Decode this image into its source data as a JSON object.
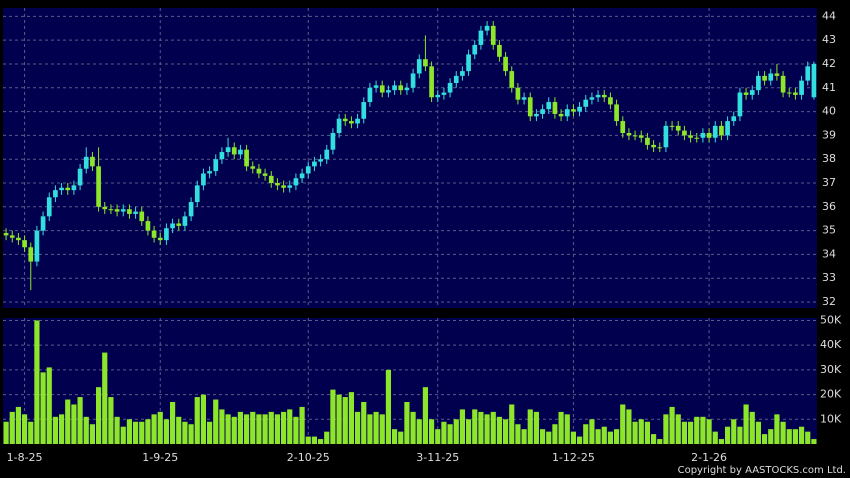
{
  "chart_data": {
    "type": "candlestick",
    "copyright": "Copyright by AASTOCKS.com Ltd.",
    "categories": [
      null,
      null,
      null,
      "1-8-25",
      null,
      null,
      null,
      null,
      null,
      null,
      null,
      null,
      null,
      null,
      null,
      null,
      null,
      null,
      null,
      null,
      null,
      null,
      null,
      null,
      null,
      "1-9-25",
      null,
      null,
      null,
      null,
      null,
      null,
      null,
      null,
      null,
      null,
      null,
      null,
      null,
      null,
      null,
      null,
      null,
      null,
      null,
      null,
      null,
      null,
      null,
      "2-10-25",
      null,
      null,
      null,
      null,
      null,
      null,
      null,
      null,
      null,
      null,
      null,
      null,
      null,
      null,
      null,
      null,
      null,
      null,
      null,
      null,
      "3-11-25",
      null,
      null,
      null,
      null,
      null,
      null,
      null,
      null,
      null,
      null,
      null,
      null,
      null,
      null,
      null,
      null,
      null,
      null,
      null,
      null,
      null,
      "1-12-25",
      null,
      null,
      null,
      null,
      null,
      null,
      null,
      null,
      null,
      null,
      null,
      null,
      null,
      null,
      null,
      null,
      null,
      null,
      null,
      null,
      null,
      "2-1-26",
      null,
      null,
      null,
      null,
      null,
      null,
      null,
      null,
      null,
      null,
      null,
      null,
      null,
      null,
      null,
      null,
      null
    ],
    "open": [
      34.9,
      34.8,
      34.7,
      34.6,
      34.3,
      33.7,
      35.0,
      35.6,
      36.4,
      36.7,
      36.8,
      36.7,
      36.9,
      37.6,
      38.1,
      37.7,
      36.0,
      35.9,
      35.9,
      35.8,
      35.9,
      35.7,
      35.8,
      35.4,
      35.0,
      34.7,
      34.6,
      35.1,
      35.3,
      35.2,
      35.6,
      36.2,
      36.9,
      37.4,
      37.5,
      38.0,
      38.3,
      38.5,
      38.2,
      38.4,
      37.7,
      37.6,
      37.4,
      37.3,
      37.0,
      36.9,
      36.8,
      36.9,
      37.2,
      37.4,
      37.7,
      37.9,
      38.0,
      38.4,
      39.1,
      39.7,
      39.6,
      39.5,
      39.7,
      40.4,
      41.0,
      41.1,
      40.8,
      40.9,
      41.1,
      40.9,
      41.0,
      41.6,
      42.2,
      41.9,
      40.6,
      40.7,
      40.8,
      41.2,
      41.5,
      41.7,
      42.4,
      42.8,
      43.4,
      43.6,
      42.8,
      42.3,
      41.7,
      41.0,
      40.5,
      40.6,
      39.8,
      39.9,
      40.1,
      40.4,
      39.9,
      39.8,
      40.1,
      40.0,
      40.2,
      40.5,
      40.6,
      40.7,
      40.6,
      40.3,
      39.6,
      39.1,
      39.0,
      39.0,
      38.9,
      38.6,
      38.5,
      38.5,
      39.4,
      39.4,
      39.2,
      39.0,
      38.9,
      38.9,
      39.1,
      38.9,
      39.4,
      39.0,
      39.6,
      39.8,
      40.8,
      40.7,
      40.9,
      41.5,
      41.3,
      41.6,
      41.5,
      40.8,
      40.8,
      40.7,
      41.3,
      40.6
    ],
    "high": [
      35.1,
      35.0,
      34.9,
      34.8,
      34.5,
      35.2,
      35.8,
      36.6,
      36.9,
      37.0,
      37.0,
      37.1,
      37.8,
      38.5,
      38.3,
      38.5,
      36.2,
      36.1,
      36.1,
      36.1,
      36.1,
      36.0,
      36.0,
      35.6,
      35.2,
      34.9,
      35.3,
      35.5,
      35.5,
      35.8,
      36.4,
      37.1,
      37.6,
      37.7,
      38.2,
      38.5,
      38.9,
      38.7,
      38.6,
      38.6,
      37.9,
      37.8,
      37.6,
      37.5,
      37.2,
      37.1,
      37.1,
      37.4,
      37.6,
      37.9,
      38.1,
      38.2,
      38.6,
      39.3,
      39.9,
      39.9,
      39.8,
      39.9,
      40.6,
      41.2,
      41.3,
      41.3,
      41.1,
      41.3,
      41.3,
      41.2,
      41.8,
      42.4,
      43.2,
      42.1,
      40.9,
      41.0,
      41.4,
      41.7,
      41.9,
      42.6,
      43.0,
      43.6,
      43.8,
      43.8,
      43.0,
      42.5,
      41.9,
      41.2,
      40.8,
      40.8,
      40.1,
      40.3,
      40.6,
      40.6,
      40.1,
      40.3,
      40.3,
      40.4,
      40.7,
      40.8,
      40.9,
      40.9,
      40.8,
      40.5,
      39.8,
      39.3,
      39.2,
      39.2,
      39.1,
      38.8,
      38.7,
      39.6,
      39.6,
      39.6,
      39.4,
      39.2,
      39.1,
      39.3,
      39.3,
      39.6,
      39.6,
      39.8,
      40.0,
      41.0,
      41.0,
      41.1,
      41.7,
      41.7,
      41.8,
      42.0,
      41.7,
      41.0,
      41.0,
      41.5,
      42.1,
      42.1
    ],
    "low": [
      34.6,
      34.5,
      34.4,
      34.1,
      32.5,
      33.5,
      34.8,
      35.4,
      36.2,
      36.5,
      36.5,
      36.5,
      36.7,
      37.4,
      37.5,
      35.8,
      35.7,
      35.7,
      35.6,
      35.6,
      35.5,
      35.5,
      35.2,
      34.8,
      34.5,
      34.4,
      34.4,
      34.9,
      35.0,
      35.0,
      35.4,
      36.0,
      36.7,
      37.2,
      37.3,
      37.8,
      38.1,
      38.0,
      38.0,
      37.5,
      37.4,
      37.2,
      37.1,
      36.8,
      36.7,
      36.6,
      36.6,
      36.7,
      37.0,
      37.2,
      37.5,
      37.7,
      37.8,
      38.2,
      38.9,
      39.4,
      39.3,
      39.3,
      39.5,
      40.2,
      40.8,
      40.6,
      40.6,
      40.7,
      40.7,
      40.7,
      40.8,
      41.4,
      41.7,
      40.4,
      40.4,
      40.5,
      40.6,
      41.0,
      41.3,
      41.5,
      42.2,
      42.6,
      43.2,
      42.6,
      42.1,
      41.5,
      40.8,
      40.3,
      40.3,
      39.6,
      39.6,
      39.7,
      39.9,
      39.7,
      39.6,
      39.6,
      39.8,
      39.8,
      40.0,
      40.3,
      40.4,
      40.4,
      40.1,
      39.4,
      38.9,
      38.8,
      38.8,
      38.7,
      38.4,
      38.3,
      38.3,
      38.3,
      39.2,
      39.0,
      38.8,
      38.7,
      38.7,
      38.7,
      38.7,
      38.7,
      38.8,
      38.8,
      39.4,
      39.6,
      40.5,
      40.5,
      40.7,
      41.1,
      41.1,
      41.3,
      40.6,
      40.6,
      40.5,
      40.5,
      41.1,
      40.5
    ],
    "close": [
      34.8,
      34.7,
      34.6,
      34.3,
      33.7,
      35.0,
      35.6,
      36.4,
      36.7,
      36.8,
      36.7,
      36.9,
      37.6,
      38.1,
      37.7,
      36.0,
      35.9,
      35.9,
      35.8,
      35.9,
      35.7,
      35.8,
      35.4,
      35.0,
      34.7,
      34.6,
      35.1,
      35.3,
      35.2,
      35.6,
      36.2,
      36.9,
      37.4,
      37.5,
      38.0,
      38.3,
      38.5,
      38.2,
      38.4,
      37.7,
      37.6,
      37.4,
      37.3,
      37.0,
      36.9,
      36.8,
      36.9,
      37.2,
      37.4,
      37.7,
      37.9,
      38.0,
      38.4,
      39.1,
      39.7,
      39.6,
      39.5,
      39.7,
      40.4,
      41.0,
      41.1,
      40.8,
      40.9,
      41.1,
      40.9,
      41.0,
      41.6,
      42.2,
      41.9,
      40.6,
      40.7,
      40.8,
      41.2,
      41.5,
      41.7,
      42.4,
      42.8,
      43.4,
      43.6,
      42.8,
      42.3,
      41.7,
      41.0,
      40.5,
      40.6,
      39.8,
      39.9,
      40.1,
      40.4,
      39.9,
      39.8,
      40.1,
      40.0,
      40.2,
      40.5,
      40.6,
      40.7,
      40.6,
      40.3,
      39.6,
      39.1,
      39.0,
      39.0,
      38.9,
      38.6,
      38.5,
      38.5,
      39.4,
      39.4,
      39.2,
      39.0,
      38.9,
      38.9,
      39.1,
      38.9,
      39.4,
      39.0,
      39.6,
      39.8,
      40.8,
      40.7,
      40.9,
      41.5,
      41.3,
      41.6,
      41.5,
      40.8,
      40.8,
      40.7,
      41.3,
      41.9,
      42.0
    ],
    "volume": [
      9000,
      13000,
      15000,
      12000,
      9000,
      50000,
      29000,
      31000,
      11000,
      12000,
      18000,
      16000,
      19000,
      11000,
      8000,
      23000,
      37000,
      19000,
      11000,
      7000,
      10000,
      9000,
      9000,
      10000,
      12000,
      13000,
      10000,
      17000,
      11000,
      9000,
      8000,
      19000,
      20000,
      9000,
      18000,
      14000,
      12000,
      11000,
      13000,
      12000,
      13000,
      12000,
      12000,
      13000,
      12000,
      13000,
      14000,
      11000,
      15000,
      3000,
      3000,
      2000,
      5000,
      22000,
      20000,
      19000,
      21000,
      13000,
      17000,
      12000,
      13000,
      12000,
      30000,
      6000,
      5000,
      17000,
      13000,
      10000,
      23000,
      10000,
      6000,
      9000,
      8000,
      10000,
      14000,
      10000,
      14000,
      13000,
      12000,
      13000,
      11000,
      10000,
      16000,
      8000,
      6000,
      14000,
      13000,
      6000,
      5000,
      8000,
      13000,
      12000,
      5000,
      3000,
      8000,
      10000,
      6000,
      7000,
      5000,
      6000,
      16000,
      14000,
      9000,
      10000,
      9000,
      4000,
      2000,
      12000,
      15000,
      12000,
      9000,
      9000,
      11000,
      11000,
      10000,
      5000,
      2000,
      7000,
      10000,
      7000,
      16000,
      13000,
      9000,
      4000,
      6000,
      12000,
      9000,
      6000,
      6000,
      7000,
      5000,
      2000
    ],
    "ylim": [
      31.75,
      44.35
    ],
    "yticks": [
      32,
      33,
      34,
      35,
      36,
      37,
      38,
      39,
      40,
      41,
      42,
      43,
      44
    ],
    "volume_ylim": [
      0,
      51000
    ],
    "volume_yticks": [
      {
        "value": 10000,
        "label": "10K"
      },
      {
        "value": 20000,
        "label": "20K"
      },
      {
        "value": 30000,
        "label": "30K"
      },
      {
        "value": 40000,
        "label": "40K"
      },
      {
        "value": 50000,
        "label": "50K"
      }
    ],
    "up_color": "#33dede",
    "down_color": "#8ee62a",
    "volume_color": "#8ee62a",
    "grid": true
  }
}
